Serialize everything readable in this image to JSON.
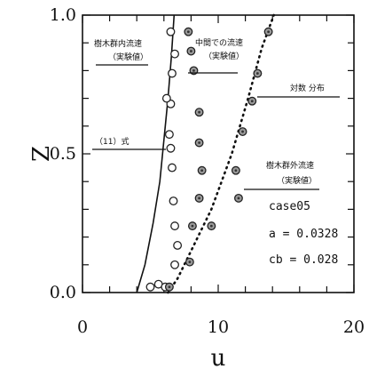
{
  "chart_data": {
    "type": "scatter",
    "title": "",
    "xlabel": "u",
    "ylabel": "Z",
    "xlim": [
      0,
      20
    ],
    "ylim": [
      0,
      1
    ],
    "x_ticks": [
      0,
      10,
      20
    ],
    "x_tick_labels": [
      "0",
      "10",
      "20"
    ],
    "y_ticks": [
      0,
      0.5,
      1
    ],
    "y_tick_labels": [
      "0.0",
      "0.5",
      "1.0"
    ],
    "grid": false,
    "legend": "none",
    "series": [
      {
        "name": "樹木群内流速（実験値）",
        "marker": "open-circle",
        "x": [
          5.0,
          5.6,
          6.1,
          6.8,
          7.0,
          6.8,
          6.7,
          6.6,
          6.5,
          6.4,
          6.5,
          6.6,
          6.8,
          6.5,
          6.2
        ],
        "y": [
          0.02,
          0.03,
          0.02,
          0.1,
          0.17,
          0.24,
          0.33,
          0.45,
          0.52,
          0.57,
          0.68,
          0.79,
          0.86,
          0.94,
          0.7
        ]
      },
      {
        "name": "中間での流速（実験値）",
        "marker": "filled-circle",
        "x": [
          6.4,
          7.9,
          8.1,
          8.6,
          8.8,
          8.6,
          8.6,
          8.2,
          8.0,
          7.8
        ],
        "y": [
          0.02,
          0.11,
          0.24,
          0.34,
          0.44,
          0.54,
          0.65,
          0.8,
          0.87,
          0.94
        ]
      },
      {
        "name": "樹木群外流速（実験値）",
        "marker": "filled-circle",
        "x": [
          9.5,
          11.5,
          11.3,
          11.8,
          12.5,
          12.9,
          13.7
        ],
        "y": [
          0.24,
          0.34,
          0.44,
          0.58,
          0.69,
          0.79,
          0.94
        ]
      },
      {
        "name": "(11)式",
        "style": "solid-line",
        "x": [
          4.0,
          4.6,
          5.2,
          5.7,
          6.0,
          6.3,
          6.55,
          6.75
        ],
        "y": [
          0.0,
          0.1,
          0.25,
          0.4,
          0.55,
          0.7,
          0.85,
          1.0
        ]
      },
      {
        "name": "対数分布",
        "style": "dotted-line",
        "x": [
          6.3,
          7.0,
          8.0,
          9.5,
          11.0,
          12.2,
          13.2,
          14.1
        ],
        "y": [
          0.0,
          0.05,
          0.15,
          0.3,
          0.5,
          0.7,
          0.88,
          1.0
        ]
      }
    ],
    "annotations": {
      "inner_line1": "樹木群内流速",
      "inner_line2": "（実験値）",
      "middle_line1": "中間での流速",
      "middle_line2": "（実験値）",
      "log": "対数 分布",
      "eq": "（11）式",
      "outer_line1": "樹木群外流速",
      "outer_line2": "（実験値）",
      "case": "case05",
      "a": "a  = 0.0328",
      "cb": "cb = 0.028"
    }
  }
}
